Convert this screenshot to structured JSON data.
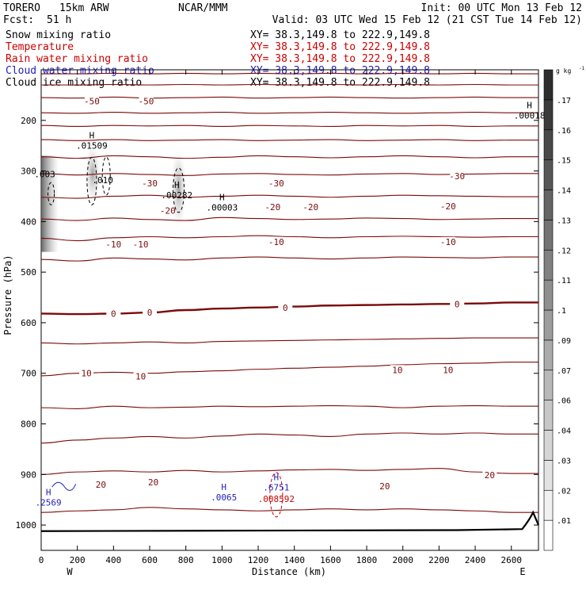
{
  "header": {
    "model": "TORERO",
    "resolution": "15km ARW",
    "org": "NCAR/MMM",
    "init": "Init: 00 UTC Mon 13 Feb 12",
    "fcst_label": "Fcst:",
    "fcst_value": "51 h",
    "valid": "Valid: 03 UTC Wed 15 Feb 12 (21 CST Tue 14 Feb 12)"
  },
  "fields": [
    {
      "label": "Snow mixing ratio",
      "color": "#000000",
      "xy": "XY=  38.3,149.8 to 222.9,149.8"
    },
    {
      "label": "Temperature",
      "color": "#cc0000",
      "xy": "XY=  38.3,149.8 to 222.9,149.8"
    },
    {
      "label": "Rain water mixing ratio",
      "color": "#cc0000",
      "xy": "XY=  38.3,149.8 to 222.9,149.8"
    },
    {
      "label": "Cloud water mixing ratio",
      "color": "#2222bb",
      "xy": "XY=  38.3,149.8 to 222.9,149.8"
    },
    {
      "label": "Cloud ice mixing ratio",
      "color": "#000000",
      "xy": "XY=  38.3,149.8 to 222.9,149.8"
    }
  ],
  "chart_data": {
    "type": "cross-section",
    "xlabel": "Distance (km)",
    "ylabel": "Pressure (hPa)",
    "x_ticks": [
      0,
      200,
      400,
      600,
      800,
      1000,
      1200,
      1400,
      1600,
      1800,
      2000,
      2200,
      2400,
      2600
    ],
    "xlim": [
      0,
      2750
    ],
    "y_ticks": [
      200,
      300,
      400,
      500,
      600,
      700,
      800,
      900,
      1000
    ],
    "ylim": [
      100,
      1050
    ],
    "y_scale": "linear",
    "x_end_labels": {
      "left": "W",
      "right": "E"
    },
    "temperature_contours": [
      {
        "value": -60,
        "p": [
          108,
          108,
          107,
          108,
          107,
          108,
          107,
          108,
          107,
          108,
          107,
          108,
          107,
          108
        ]
      },
      {
        "value": -55,
        "p": [
          130,
          130,
          129,
          130,
          129,
          130,
          129,
          130,
          129,
          130,
          129,
          130,
          129,
          130
        ]
      },
      {
        "value": -50,
        "p": [
          155,
          156,
          154,
          156,
          155,
          154,
          156,
          155,
          154,
          155,
          156,
          155,
          154,
          155
        ]
      },
      {
        "value": -45,
        "p": [
          185,
          186,
          184,
          186,
          185,
          184,
          186,
          185,
          184,
          185,
          186,
          185,
          184,
          185
        ]
      },
      {
        "value": -40,
        "p": [
          210,
          212,
          210,
          211,
          210,
          212,
          210,
          211,
          212,
          210,
          211,
          210,
          212,
          211
        ]
      },
      {
        "value": -35,
        "p": [
          238,
          240,
          238,
          240,
          239,
          238,
          240,
          239,
          238,
          240,
          239,
          238,
          240,
          239
        ]
      },
      {
        "value": -30,
        "p": [
          272,
          275,
          270,
          272,
          275,
          273,
          270,
          272,
          274,
          272,
          270,
          272,
          274,
          272
        ]
      },
      {
        "value": -25,
        "p": [
          305,
          308,
          305,
          307,
          309,
          306,
          305,
          307,
          308,
          306,
          305,
          307,
          306,
          305
        ]
      },
      {
        "value": -20,
        "p": [
          352,
          354,
          350,
          348,
          352,
          350,
          348,
          350,
          352,
          350,
          348,
          349,
          350,
          351
        ]
      },
      {
        "value": -15,
        "p": [
          395,
          398,
          393,
          396,
          398,
          392,
          394,
          396,
          395,
          393,
          394,
          396,
          395,
          394
        ]
      },
      {
        "value": -10,
        "p": [
          433,
          438,
          432,
          430,
          432,
          430,
          428,
          430,
          432,
          430,
          429,
          430,
          431,
          430
        ]
      },
      {
        "value": -5,
        "p": [
          475,
          478,
          472,
          474,
          476,
          472,
          470,
          472,
          474,
          472,
          470,
          471,
          472,
          470
        ]
      },
      {
        "value": 0,
        "p": [
          582,
          583,
          582,
          580,
          575,
          572,
          570,
          568,
          566,
          565,
          564,
          563,
          562,
          560
        ]
      },
      {
        "value": 5,
        "p": [
          640,
          642,
          640,
          638,
          640,
          637,
          636,
          635,
          634,
          633,
          632,
          631,
          630,
          630
        ]
      },
      {
        "value": 10,
        "p": [
          705,
          700,
          698,
          700,
          697,
          695,
          692,
          690,
          688,
          686,
          683,
          681,
          680,
          678
        ]
      },
      {
        "value": 15,
        "p": [
          768,
          770,
          765,
          768,
          767,
          765,
          766,
          765,
          764,
          765,
          768,
          765,
          764,
          765
        ]
      },
      {
        "value": 20,
        "p": [
          838,
          832,
          828,
          825,
          828,
          824,
          820,
          822,
          825,
          820,
          818,
          820,
          818,
          820
        ]
      },
      {
        "value": 25,
        "p": [
          900,
          895,
          893,
          895,
          892,
          895,
          893,
          891,
          890,
          892,
          890,
          888,
          895,
          898
        ]
      },
      {
        "value": 30,
        "p": [
          975,
          972,
          970,
          965,
          968,
          970,
          972,
          970,
          968,
          970,
          968,
          970,
          972,
          975
        ]
      }
    ],
    "temperature_labels": [
      {
        "text": "-50",
        "x": 280,
        "p": 162
      },
      {
        "text": "-50",
        "x": 580,
        "p": 162
      },
      {
        "text": "-30",
        "x": 600,
        "p": 324
      },
      {
        "text": "-30",
        "x": 1300,
        "p": 324
      },
      {
        "text": "-30",
        "x": 2300,
        "p": 310
      },
      {
        "text": "-20",
        "x": 700,
        "p": 378
      },
      {
        "text": "-20",
        "x": 1280,
        "p": 371
      },
      {
        "text": "-20",
        "x": 1490,
        "p": 371
      },
      {
        "text": "-20",
        "x": 2250,
        "p": 370
      },
      {
        "text": "-10",
        "x": 400,
        "p": 445
      },
      {
        "text": "-10",
        "x": 550,
        "p": 445
      },
      {
        "text": "-10",
        "x": 1300,
        "p": 440
      },
      {
        "text": "-10",
        "x": 2250,
        "p": 440
      },
      {
        "text": "0",
        "x": 400,
        "p": 582
      },
      {
        "text": "0",
        "x": 600,
        "p": 580
      },
      {
        "text": "0",
        "x": 1350,
        "p": 570
      },
      {
        "text": "0",
        "x": 2300,
        "p": 563
      },
      {
        "text": "10",
        "x": 250,
        "p": 700
      },
      {
        "text": "10",
        "x": 550,
        "p": 706
      },
      {
        "text": "10",
        "x": 1970,
        "p": 693
      },
      {
        "text": "10",
        "x": 2250,
        "p": 693
      },
      {
        "text": "20",
        "x": 330,
        "p": 920
      },
      {
        "text": "20",
        "x": 620,
        "p": 915
      },
      {
        "text": "20",
        "x": 1900,
        "p": 923
      },
      {
        "text": "20",
        "x": 2480,
        "p": 901
      }
    ],
    "annotations": [
      {
        "mark": "H",
        "value": ".00018",
        "x": 2700,
        "p": 190,
        "color": "#000000"
      },
      {
        "mark": "H",
        "value": ".01509",
        "x": 280,
        "p": 250,
        "color": "#000000"
      },
      {
        "mark": "",
        "value": ".003",
        "x": 20,
        "p": 306,
        "color": "#000000"
      },
      {
        "mark": "",
        "value": ".010",
        "x": 340,
        "p": 318,
        "color": "#000000"
      },
      {
        "mark": "H",
        "value": ".00282",
        "x": 750,
        "p": 348,
        "color": "#000000"
      },
      {
        "mark": "H",
        "value": ".00003",
        "x": 1000,
        "p": 372,
        "color": "#000000"
      },
      {
        "mark": "H",
        "value": ".2569",
        "x": 40,
        "p": 955,
        "color": "#2222bb"
      },
      {
        "mark": "H",
        "value": ".0065",
        "x": 1010,
        "p": 945,
        "color": "#2222bb"
      },
      {
        "mark": "H",
        "value": ".6751",
        "x": 1300,
        "p": 925,
        "color": "#2222bb"
      },
      {
        "mark": "",
        "value": ".008592",
        "x": 1300,
        "p": 948,
        "color": "#cc0000"
      }
    ],
    "colorbar": {
      "unit": "g kg",
      "unit_sup": "-1",
      "ticks": [
        ".01",
        ".02",
        ".03",
        ".04",
        ".06",
        ".07",
        ".09",
        ".1",
        ".11",
        ".12",
        ".13",
        ".14",
        ".15",
        ".16",
        ".17"
      ]
    }
  }
}
